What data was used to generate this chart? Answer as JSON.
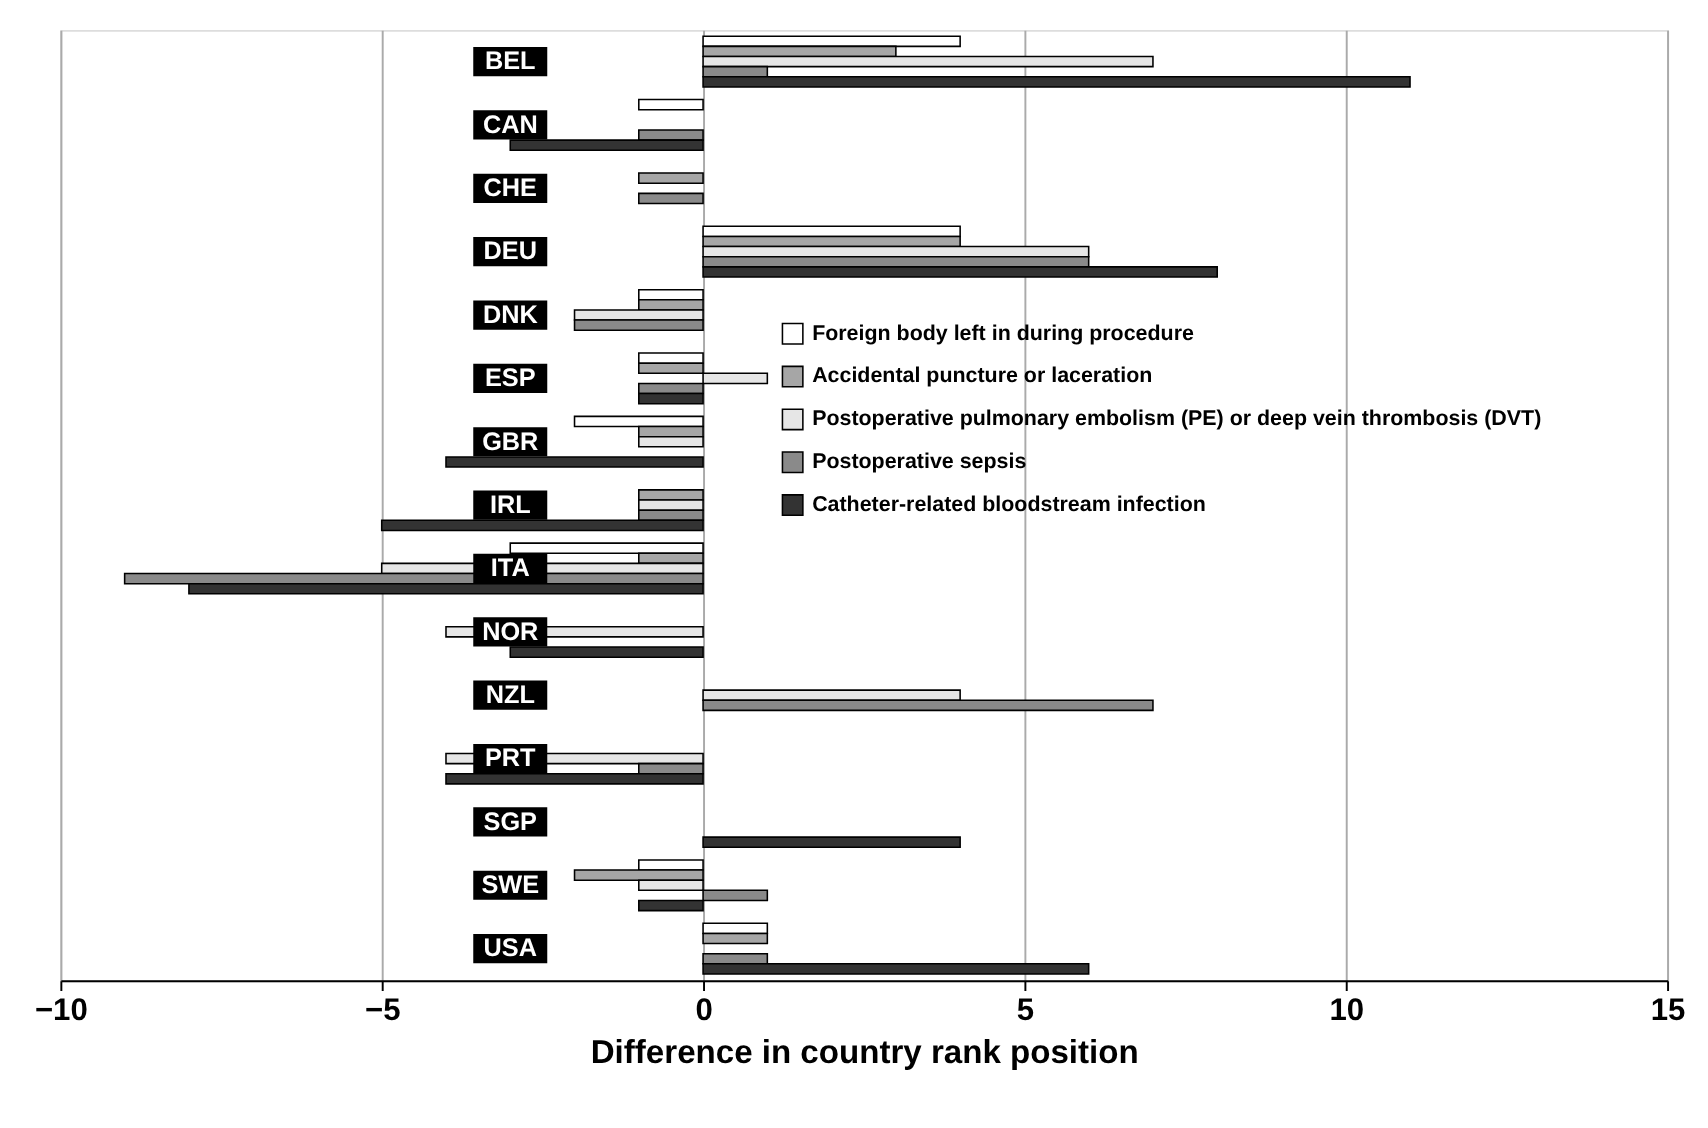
{
  "chart_data": {
    "type": "bar",
    "orientation": "horizontal",
    "xlabel": "Difference in country rank position",
    "categories": [
      "BEL",
      "CAN",
      "CHE",
      "DEU",
      "DNK",
      "ESP",
      "GBR",
      "IRL",
      "ITA",
      "NOR",
      "NZL",
      "PRT",
      "SGP",
      "SWE",
      "USA"
    ],
    "series": [
      {
        "name": "Foreign body left in during procedure",
        "color": "#ffffff",
        "values": [
          4,
          -1,
          0,
          4,
          -1,
          -1,
          -2,
          0,
          -3,
          0,
          0,
          0,
          0,
          -1,
          1
        ]
      },
      {
        "name": "Accidental puncture or laceration",
        "color": "#a6a6a6",
        "values": [
          3,
          0,
          -1,
          4,
          -1,
          -1,
          -1,
          -1,
          -1,
          0,
          0,
          0,
          0,
          -2,
          1
        ]
      },
      {
        "name": "Postoperative pulmonary embolism (PE) or deep vein thrombosis (DVT)",
        "color": "#e6e6e6",
        "values": [
          7,
          0,
          0,
          6,
          -2,
          1,
          -1,
          -1,
          -5,
          -4,
          4,
          -4,
          0,
          -1,
          0
        ]
      },
      {
        "name": "Postoperative sepsis",
        "color": "#8a8a8a",
        "values": [
          1,
          -1,
          -1,
          6,
          -2,
          -1,
          0,
          -1,
          -9,
          0,
          7,
          -1,
          0,
          1,
          1
        ]
      },
      {
        "name": "Catheter-related bloodstream infection",
        "color": "#333333",
        "values": [
          11,
          -3,
          0,
          8,
          0,
          -1,
          -4,
          -5,
          -8,
          -3,
          0,
          -4,
          4,
          -1,
          6
        ]
      }
    ],
    "xlim": [
      -10,
      15
    ],
    "xticks": [
      -10,
      -5,
      0,
      5,
      10,
      15
    ],
    "grid": "x",
    "legend": "right"
  }
}
